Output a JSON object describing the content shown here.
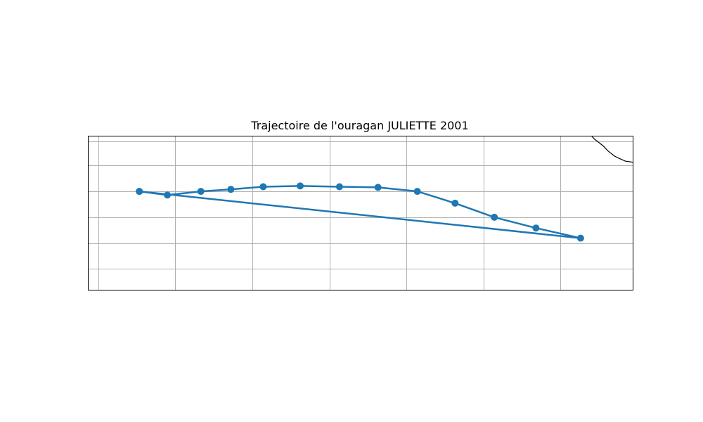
{
  "title": "Trajectoire de l'ouragan JULIETTE 2001",
  "map": {
    "lon_range": [
      -124.68,
      -89.32
    ],
    "lat_range": [
      19.02,
      29.02
    ],
    "grid_lons": [
      -124,
      -119,
      -114,
      -109,
      -104,
      -99,
      -94
    ],
    "grid_lats": [
      20.37,
      22.05,
      23.73,
      25.41,
      27.09,
      28.66
    ],
    "gridlines": true,
    "coastline": [
      [
        -92.0,
        29.02
      ],
      [
        -91.8,
        28.8
      ],
      [
        -91.6,
        28.65
      ],
      [
        -91.2,
        28.33
      ],
      [
        -90.95,
        28.05
      ],
      [
        -90.5,
        27.7
      ],
      [
        -90.2,
        27.55
      ],
      [
        -89.8,
        27.37
      ],
      [
        -89.3,
        27.3
      ],
      [
        -88.8,
        27.25
      ],
      [
        -88.2,
        27.27
      ],
      [
        -87.8,
        27.3
      ],
      [
        -87.4,
        27.28
      ],
      [
        -86.9,
        27.25
      ],
      [
        -86.4,
        27.1
      ],
      [
        -86.0,
        26.85
      ],
      [
        -85.6,
        26.65
      ]
    ]
  },
  "track": {
    "color": "#1f77b4",
    "points": [
      {
        "lon": -121.34,
        "lat": 25.41
      },
      {
        "lon": -119.52,
        "lat": 25.17
      },
      {
        "lon": -117.35,
        "lat": 25.41
      },
      {
        "lon": -115.4,
        "lat": 25.54
      },
      {
        "lon": -113.3,
        "lat": 25.71
      },
      {
        "lon": -110.9,
        "lat": 25.76
      },
      {
        "lon": -108.35,
        "lat": 25.71
      },
      {
        "lon": -105.85,
        "lat": 25.67
      },
      {
        "lon": -103.3,
        "lat": 25.41
      },
      {
        "lon": -100.85,
        "lat": 24.64
      },
      {
        "lon": -98.3,
        "lat": 23.73
      },
      {
        "lon": -95.6,
        "lat": 23.03
      },
      {
        "lon": -92.7,
        "lat": 22.37
      },
      {
        "lon": -121.34,
        "lat": 25.41
      }
    ]
  }
}
